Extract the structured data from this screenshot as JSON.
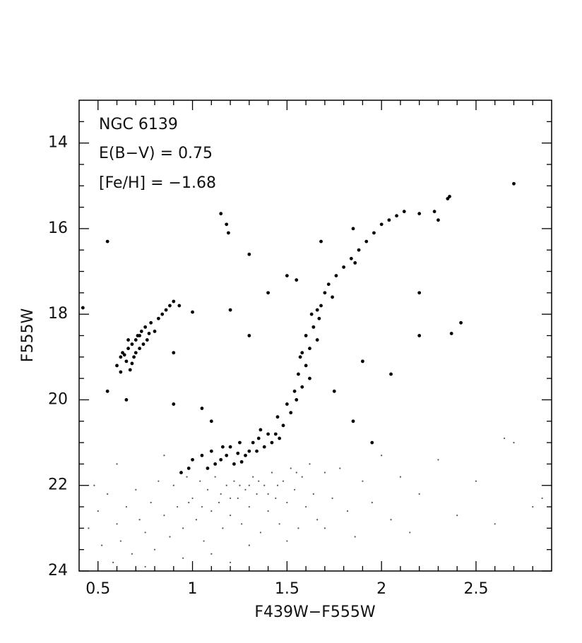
{
  "chart_data": {
    "type": "scatter",
    "xlabel": "F439W−F555W",
    "ylabel": "F555W",
    "annotations": [
      "NGC 6139",
      "E(B−V) = 0.75",
      "[Fe/H] = −1.68"
    ],
    "xlim": [
      0.4,
      2.9
    ],
    "ylim": [
      24,
      13
    ],
    "xticks": [
      0.5,
      1,
      1.5,
      2,
      2.5
    ],
    "yticks": [
      14,
      16,
      18,
      20,
      22,
      24
    ],
    "xminorticks": [
      0.6,
      0.7,
      0.8,
      0.9,
      1.1,
      1.2,
      1.3,
      1.4,
      1.6,
      1.7,
      1.8,
      1.9,
      2.1,
      2.2,
      2.3,
      2.4,
      2.6,
      2.7,
      2.8
    ],
    "yminorticks": [
      13.5,
      14.5,
      15,
      15.5,
      16.5,
      17,
      17.5,
      18.5,
      19,
      19.5,
      20.5,
      21,
      21.5,
      22.5,
      23,
      23.5
    ],
    "series": [
      {
        "color": "#000000",
        "marker_size": 2.4,
        "x": [
          0.6,
          0.62,
          0.63,
          0.65,
          0.66,
          0.67,
          0.68,
          0.69,
          0.7,
          0.7,
          0.71,
          0.72,
          0.73,
          0.74,
          0.75,
          0.76,
          0.78,
          0.8,
          0.82,
          0.84,
          0.86,
          0.88,
          0.9,
          0.93,
          0.62,
          0.64,
          0.68,
          0.72,
          0.66,
          0.77,
          1.52,
          1.55,
          1.48,
          1.58,
          1.56,
          1.6,
          1.57,
          1.62,
          1.6,
          1.64,
          1.63,
          1.66,
          1.68,
          1.7,
          1.72,
          1.76,
          1.8,
          1.84,
          1.88,
          1.92,
          1.96,
          2.0,
          2.04,
          2.08,
          2.12,
          2.2,
          2.28,
          2.35,
          2.36,
          2.7,
          1.5,
          1.45,
          1.62,
          1.66,
          1.54,
          1.44,
          1.58,
          1.67,
          1.74,
          1.86,
          1.0,
          1.05,
          1.1,
          1.15,
          1.2,
          1.22,
          1.25,
          1.28,
          1.3,
          1.32,
          1.35,
          1.38,
          1.4,
          1.42,
          1.36,
          1.08,
          0.98,
          1.12,
          1.18,
          1.26,
          1.34,
          1.46,
          0.94,
          1.16,
          1.24,
          0.55,
          1.15,
          1.18,
          1.19,
          1.3,
          1.5,
          1.55,
          1.68,
          1.85,
          2.2,
          2.2,
          2.42,
          2.37,
          2.05,
          1.9,
          1.75,
          1.4,
          1.2,
          1.3,
          0.9,
          1.05,
          0.65,
          0.55,
          1.1,
          0.42,
          1.85,
          1.95,
          0.9,
          1.0,
          2.3
        ],
        "values": [
          19.2,
          19.0,
          18.9,
          19.1,
          18.8,
          19.3,
          18.7,
          19.0,
          18.6,
          18.9,
          18.5,
          18.8,
          18.4,
          18.7,
          18.3,
          18.6,
          18.2,
          18.4,
          18.1,
          18.0,
          17.9,
          17.8,
          17.7,
          17.8,
          19.35,
          18.95,
          19.15,
          18.5,
          18.6,
          18.45,
          20.3,
          20.0,
          20.6,
          19.7,
          19.4,
          19.2,
          19.0,
          18.8,
          18.5,
          18.3,
          18.0,
          17.9,
          17.8,
          17.5,
          17.3,
          17.1,
          16.9,
          16.7,
          16.5,
          16.3,
          16.1,
          15.9,
          15.8,
          15.7,
          15.6,
          15.65,
          15.6,
          15.3,
          15.25,
          14.95,
          20.1,
          20.4,
          19.5,
          18.6,
          19.8,
          20.8,
          18.9,
          18.1,
          17.6,
          16.8,
          21.4,
          21.3,
          21.2,
          21.4,
          21.1,
          21.5,
          21.0,
          21.3,
          21.2,
          21.0,
          20.9,
          21.1,
          20.8,
          21.0,
          20.7,
          21.6,
          21.6,
          21.5,
          21.3,
          21.45,
          21.2,
          20.9,
          21.7,
          21.1,
          21.25,
          16.3,
          15.65,
          15.9,
          16.1,
          16.6,
          17.1,
          17.2,
          16.3,
          16.0,
          17.5,
          18.5,
          18.2,
          18.45,
          19.4,
          19.1,
          19.8,
          17.5,
          17.9,
          18.5,
          20.1,
          20.2,
          20.0,
          19.8,
          20.5,
          17.85,
          20.5,
          21.0,
          18.9,
          17.95,
          15.8
        ]
      },
      {
        "color": "#555555",
        "marker_size": 1.1,
        "x": [
          0.45,
          0.5,
          0.52,
          0.55,
          0.58,
          0.6,
          0.62,
          0.65,
          0.68,
          0.7,
          0.72,
          0.75,
          0.78,
          0.8,
          0.82,
          0.85,
          0.88,
          0.9,
          0.92,
          0.95,
          0.97,
          1.0,
          1.02,
          1.04,
          1.06,
          1.08,
          1.1,
          1.12,
          1.14,
          1.16,
          1.18,
          1.2,
          1.22,
          1.24,
          1.26,
          1.28,
          1.3,
          1.32,
          1.34,
          1.36,
          1.38,
          1.4,
          1.42,
          1.44,
          1.46,
          1.48,
          1.5,
          1.52,
          1.54,
          1.56,
          1.58,
          1.6,
          1.62,
          1.64,
          1.66,
          1.7,
          1.74,
          1.78,
          1.82,
          1.86,
          1.9,
          1.95,
          2.0,
          2.05,
          2.1,
          2.15,
          2.2,
          2.3,
          2.4,
          2.5,
          2.6,
          2.7,
          2.8,
          2.85,
          2.65,
          0.48,
          0.6,
          0.85,
          1.1,
          1.3,
          1.5,
          1.7,
          1.2,
          0.95,
          0.75,
          1.45,
          1.25,
          1.35,
          1.15,
          1.05,
          1.55,
          1.4,
          1.3,
          1.2,
          0.98
        ],
        "values": [
          23.0,
          22.6,
          23.4,
          22.2,
          23.8,
          22.9,
          23.3,
          22.5,
          23.6,
          22.1,
          22.8,
          23.1,
          22.4,
          23.5,
          21.9,
          22.7,
          23.2,
          22.0,
          22.5,
          23.0,
          21.8,
          22.3,
          22.8,
          21.9,
          23.3,
          22.1,
          22.6,
          21.8,
          22.4,
          23.0,
          22.0,
          22.7,
          21.9,
          22.3,
          22.9,
          22.1,
          22.5,
          21.8,
          22.2,
          23.1,
          22.0,
          22.6,
          21.7,
          22.3,
          22.9,
          21.9,
          22.4,
          21.6,
          22.1,
          23.0,
          21.8,
          22.5,
          21.5,
          22.2,
          22.8,
          21.7,
          22.3,
          21.6,
          22.6,
          23.2,
          21.9,
          22.4,
          21.3,
          22.8,
          21.8,
          23.1,
          22.2,
          21.4,
          22.7,
          21.9,
          22.9,
          21.0,
          22.5,
          22.3,
          20.9,
          22.0,
          21.5,
          21.3,
          23.6,
          23.4,
          23.3,
          23.0,
          23.8,
          23.7,
          23.9,
          22.0,
          22.0,
          21.9,
          22.2,
          22.5,
          21.7,
          22.2,
          22.0,
          22.3,
          22.4
        ]
      }
    ]
  }
}
